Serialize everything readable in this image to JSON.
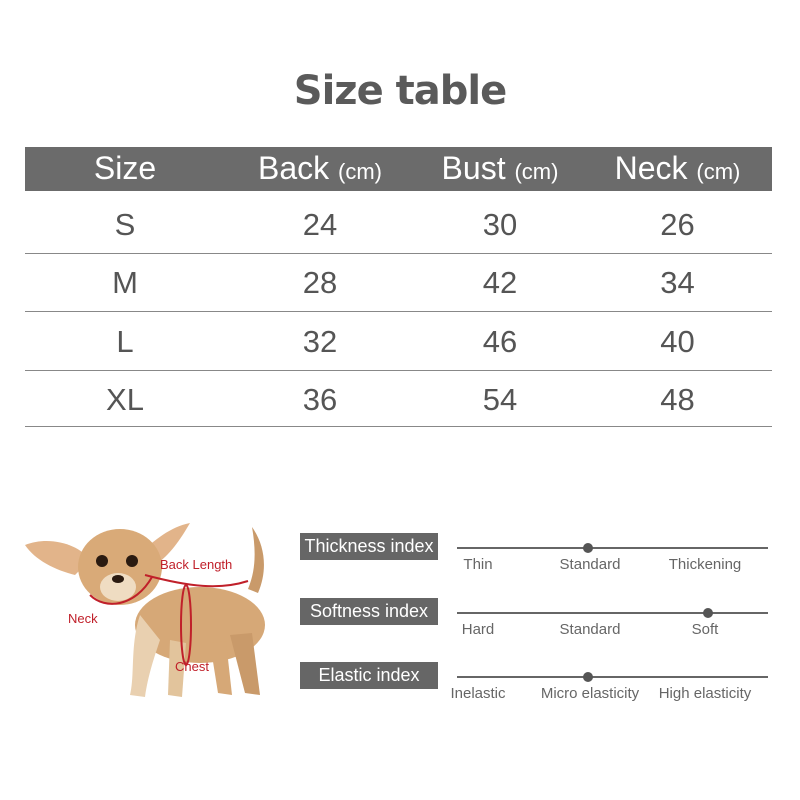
{
  "title": "Size table",
  "table": {
    "headers": [
      {
        "label": "Size",
        "unit": ""
      },
      {
        "label": "Back",
        "unit": "(cm)"
      },
      {
        "label": "Bust",
        "unit": "(cm)"
      },
      {
        "label": "Neck",
        "unit": "(cm)"
      }
    ],
    "rows": [
      [
        "S",
        "24",
        "30",
        "26"
      ],
      [
        "M",
        "28",
        "42",
        "34"
      ],
      [
        "L",
        "32",
        "46",
        "40"
      ],
      [
        "XL",
        "36",
        "54",
        "48"
      ]
    ]
  },
  "dog_labels": {
    "back": "Back Length",
    "neck": "Neck",
    "chest": "Chest"
  },
  "indices": [
    {
      "label": "Thickness index",
      "ticks": [
        "Thin",
        "Standard",
        "Thickening"
      ],
      "selected": "Standard"
    },
    {
      "label": "Softness index",
      "ticks": [
        "Hard",
        "Standard",
        "Soft"
      ],
      "selected": "Soft"
    },
    {
      "label": "Elastic index",
      "ticks": [
        "Inelastic",
        "Micro elasticity",
        "High elasticity"
      ],
      "selected": "Micro elasticity"
    }
  ],
  "colors": {
    "header_bg": "#6b6b6b",
    "measure_red": "#c0202a"
  }
}
